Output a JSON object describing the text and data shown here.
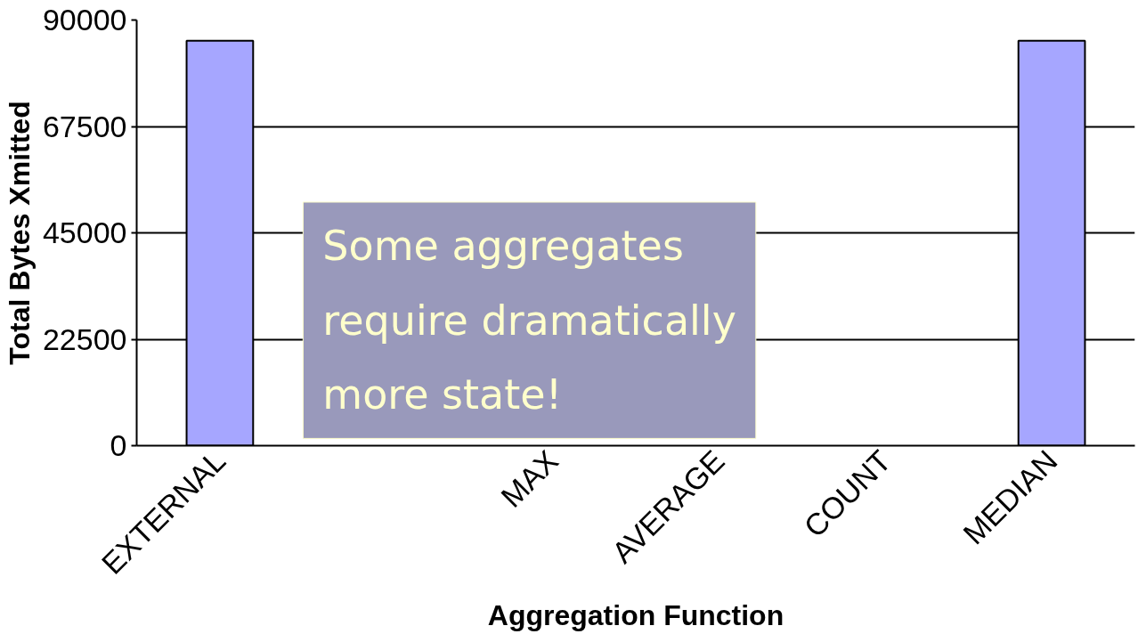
{
  "chart_data": {
    "type": "bar",
    "xlabel": "Aggregation Function",
    "ylabel": "Total Bytes Xmitted",
    "categories": [
      "EXTERNAL",
      null,
      "MAX",
      "AVERAGE",
      "COUNT",
      "MEDIAN"
    ],
    "values": [
      85600,
      null,
      null,
      null,
      null,
      85600
    ],
    "color": "#a6a6ff",
    "ylim": [
      0,
      90000
    ],
    "yticks": [
      0,
      22500,
      45000,
      67500,
      90000
    ],
    "grid": "y",
    "annotations": [
      "Some aggregates\nrequire dramatically\nmore state!"
    ]
  }
}
